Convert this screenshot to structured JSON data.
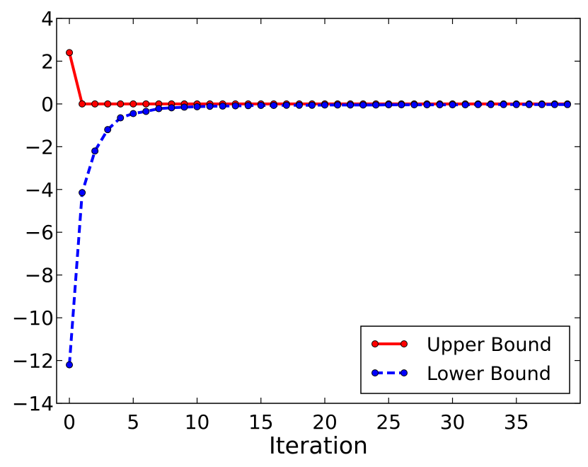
{
  "chart_data": {
    "type": "line",
    "title": "",
    "xlabel": "Iteration",
    "ylabel": "",
    "xlim": [
      -1,
      40
    ],
    "ylim": [
      -14,
      4
    ],
    "xticks": [
      0,
      5,
      10,
      15,
      20,
      25,
      30,
      35
    ],
    "yticks": [
      4,
      2,
      0,
      -2,
      -4,
      -6,
      -8,
      -10,
      -12,
      -14
    ],
    "xtick_labels": [
      "0",
      "5",
      "10",
      "15",
      "20",
      "25",
      "30",
      "35"
    ],
    "ytick_labels": [
      "4",
      "2",
      "0",
      "−2",
      "−4",
      "−6",
      "−8",
      "−10",
      "−12",
      "−14"
    ],
    "grid": false,
    "legend_position": "lower-right",
    "x": [
      0,
      1,
      2,
      3,
      4,
      5,
      6,
      7,
      8,
      9,
      10,
      11,
      12,
      13,
      14,
      15,
      16,
      17,
      18,
      19,
      20,
      21,
      22,
      23,
      24,
      25,
      26,
      27,
      28,
      29,
      30,
      31,
      32,
      33,
      34,
      35,
      36,
      37,
      38,
      39
    ],
    "series": [
      {
        "name": "Upper Bound",
        "color": "#ff0000",
        "line_style": "solid",
        "marker_color": "#ff0000",
        "values": [
          2.4,
          0,
          0,
          0,
          0,
          0,
          0,
          0,
          0,
          0,
          0,
          0,
          0,
          0,
          0,
          0,
          0,
          0,
          0,
          0,
          0,
          0,
          0,
          0,
          0,
          0,
          0,
          0,
          0,
          0,
          0,
          0,
          0,
          0,
          0,
          0,
          0,
          0,
          0,
          0
        ]
      },
      {
        "name": "Lower Bound",
        "color": "#0000ff",
        "line_style": "dashed",
        "marker_color": "#0000ff",
        "values": [
          -12.2,
          -4.15,
          -2.2,
          -1.2,
          -0.65,
          -0.45,
          -0.35,
          -0.22,
          -0.18,
          -0.15,
          -0.13,
          -0.11,
          -0.1,
          -0.09,
          -0.08,
          -0.07,
          -0.07,
          -0.06,
          -0.06,
          -0.06,
          -0.05,
          -0.05,
          -0.05,
          -0.05,
          -0.05,
          -0.04,
          -0.04,
          -0.04,
          -0.04,
          -0.04,
          -0.04,
          -0.04,
          -0.03,
          -0.03,
          -0.03,
          -0.03,
          -0.03,
          -0.03,
          -0.03,
          -0.03
        ]
      }
    ]
  }
}
